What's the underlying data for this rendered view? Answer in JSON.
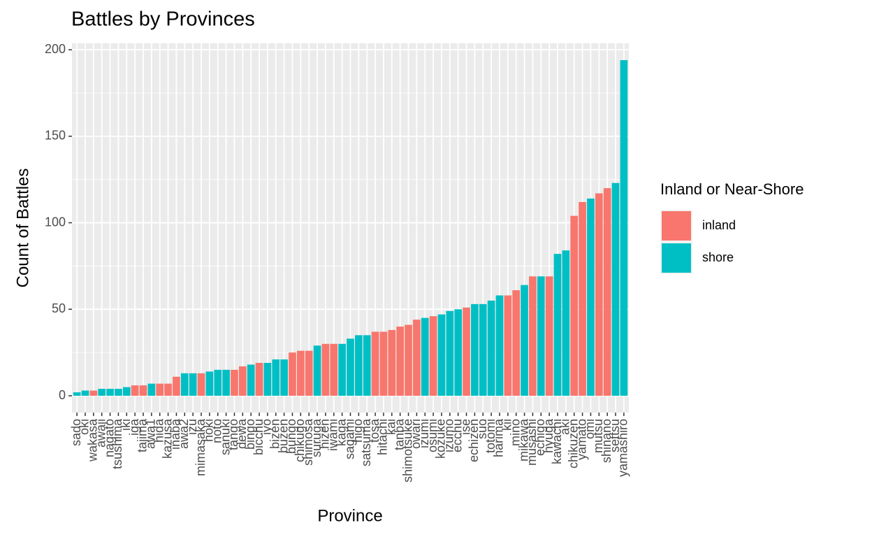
{
  "chart_data": {
    "type": "bar",
    "title": "Battles by Provinces",
    "x_label": "Province",
    "y_label": "Count of Battles",
    "categories": [
      "sado",
      "oki",
      "wakasa",
      "awaji",
      "nagato",
      "tsushima",
      "iki",
      "iga",
      "tajima",
      "awa1",
      "hida",
      "kazusa",
      "inaba",
      "awa2",
      "izu",
      "mimasaka",
      "hoki",
      "noto",
      "sanuki",
      "tango",
      "dewa",
      "bingo",
      "bicchu",
      "iyo",
      "bizen",
      "buzen",
      "bungo",
      "chikugo",
      "shimosa",
      "suruga",
      "hizen",
      "iwami",
      "kaga",
      "sagami",
      "higo",
      "satsuma",
      "tosa",
      "hitachi",
      "kai",
      "tanba",
      "shimotsuke",
      "owari",
      "izumi",
      "osumi",
      "kozuke",
      "izumo",
      "ecchu",
      "ise",
      "echizen",
      "suo",
      "totomi",
      "harima",
      "kii",
      "mino",
      "mikawa",
      "musashi",
      "echigo",
      "hyuga",
      "kawachi",
      "aki",
      "chikuzen",
      "yamato",
      "omi",
      "mutsu",
      "shinano",
      "settsu",
      "yamashiro"
    ],
    "values": [
      2,
      3,
      3,
      4,
      4,
      4,
      5,
      6,
      6,
      7,
      7,
      7,
      11,
      13,
      13,
      13,
      14,
      15,
      15,
      15,
      17,
      18,
      19,
      19,
      21,
      21,
      25,
      26,
      26,
      29,
      30,
      30,
      30,
      33,
      35,
      35,
      37,
      37,
      38,
      40,
      41,
      44,
      45,
      46,
      47,
      49,
      50,
      51,
      53,
      53,
      55,
      58,
      58,
      61,
      64,
      69,
      69,
      69,
      82,
      84,
      104,
      112,
      114,
      117,
      120,
      123,
      194
    ],
    "groups": [
      "shore",
      "shore",
      "inland",
      "shore",
      "shore",
      "shore",
      "shore",
      "inland",
      "inland",
      "shore",
      "inland",
      "inland",
      "inland",
      "shore",
      "shore",
      "inland",
      "shore",
      "shore",
      "shore",
      "inland",
      "inland",
      "shore",
      "inland",
      "shore",
      "shore",
      "shore",
      "inland",
      "inland",
      "inland",
      "shore",
      "inland",
      "inland",
      "shore",
      "shore",
      "shore",
      "shore",
      "inland",
      "inland",
      "inland",
      "inland",
      "inland",
      "inland",
      "shore",
      "inland",
      "shore",
      "shore",
      "shore",
      "inland",
      "shore",
      "shore",
      "shore",
      "shore",
      "inland",
      "inland",
      "shore",
      "inland",
      "shore",
      "inland",
      "shore",
      "shore",
      "inland",
      "inland",
      "shore",
      "inland",
      "inland",
      "shore",
      "shore"
    ],
    "legend": {
      "title": "Inland or Near-Shore",
      "items": [
        {
          "name": "inland",
          "color": "#F8766D"
        },
        {
          "name": "shore",
          "color": "#00BFC4"
        }
      ]
    },
    "ylim": [
      -9.7,
      203.7
    ],
    "yticks": [
      0,
      50,
      100,
      150,
      200
    ],
    "grid": true
  }
}
